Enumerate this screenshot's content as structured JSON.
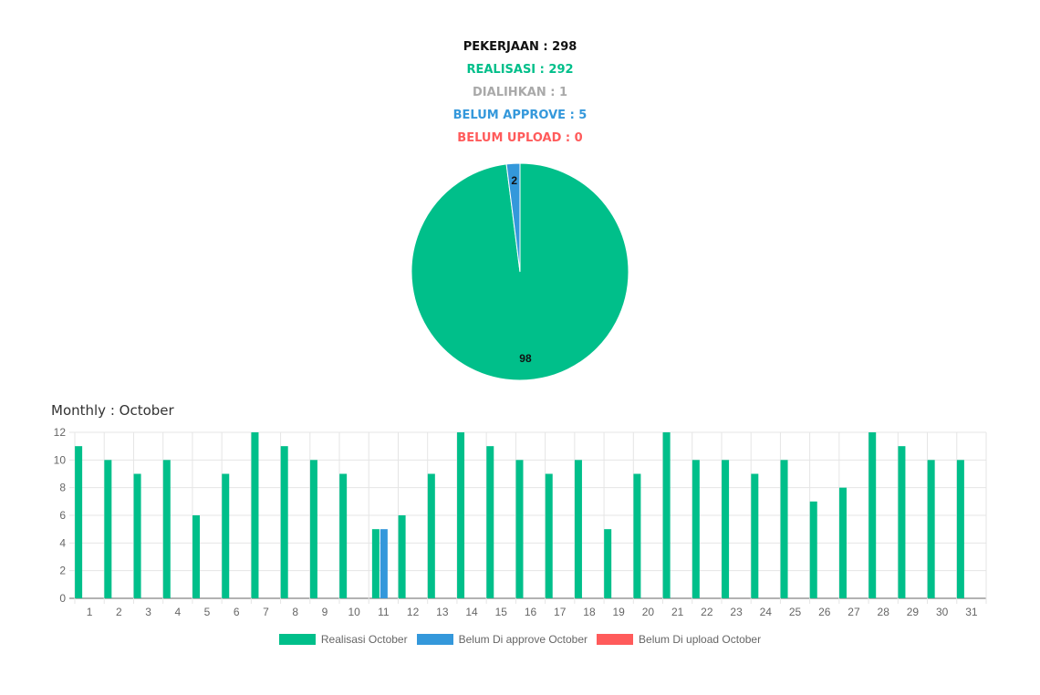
{
  "summary": {
    "pekerjaan": "PEKERJAAN : 298",
    "realisasi": "REALISASI : 292",
    "dialihkan": "DIALIHKAN : 1",
    "belum_approve": "BELUM APPROVE : 5",
    "belum_upload": "BELUM UPLOAD : 0"
  },
  "colors": {
    "black": "#111111",
    "green": "#00bf8a",
    "gray": "#a9a9a9",
    "blue": "#3498db",
    "red": "#ff5b5b"
  },
  "chart_data": [
    {
      "type": "pie",
      "labels": [
        "Realisasi",
        "Belum approve"
      ],
      "values": [
        98,
        2
      ],
      "data_labels": [
        "98",
        "2"
      ],
      "colors": [
        "#00bf8a",
        "#3498db"
      ]
    },
    {
      "type": "bar",
      "title": "Monthly : October",
      "categories": [
        "1",
        "2",
        "3",
        "4",
        "5",
        "6",
        "7",
        "8",
        "9",
        "10",
        "11",
        "12",
        "13",
        "14",
        "15",
        "16",
        "17",
        "18",
        "19",
        "20",
        "21",
        "22",
        "23",
        "24",
        "25",
        "26",
        "27",
        "28",
        "29",
        "30",
        "31"
      ],
      "series": [
        {
          "name": "Realisasi October",
          "color": "#00bf8a",
          "values": [
            11,
            10,
            9,
            10,
            6,
            9,
            12,
            11,
            10,
            9,
            5,
            6,
            9,
            12,
            11,
            10,
            9,
            10,
            5,
            9,
            12,
            10,
            10,
            9,
            10,
            7,
            8,
            12,
            11,
            10,
            10
          ]
        },
        {
          "name": "Belum Di approve October",
          "color": "#3498db",
          "values": [
            0,
            0,
            0,
            0,
            0,
            0,
            0,
            0,
            0,
            0,
            5,
            0,
            0,
            0,
            0,
            0,
            0,
            0,
            0,
            0,
            0,
            0,
            0,
            0,
            0,
            0,
            0,
            0,
            0,
            0,
            0
          ]
        },
        {
          "name": "Belum Di upload October",
          "color": "#ff5b5b",
          "values": [
            0,
            0,
            0,
            0,
            0,
            0,
            0,
            0,
            0,
            0,
            0,
            0,
            0,
            0,
            0,
            0,
            0,
            0,
            0,
            0,
            0,
            0,
            0,
            0,
            0,
            0,
            0,
            0,
            0,
            0,
            0
          ]
        }
      ],
      "yticks": [
        "0",
        "2",
        "4",
        "6",
        "8",
        "10",
        "12"
      ],
      "ylim": [
        0,
        12
      ],
      "grid": true,
      "legend": "bottom"
    }
  ]
}
